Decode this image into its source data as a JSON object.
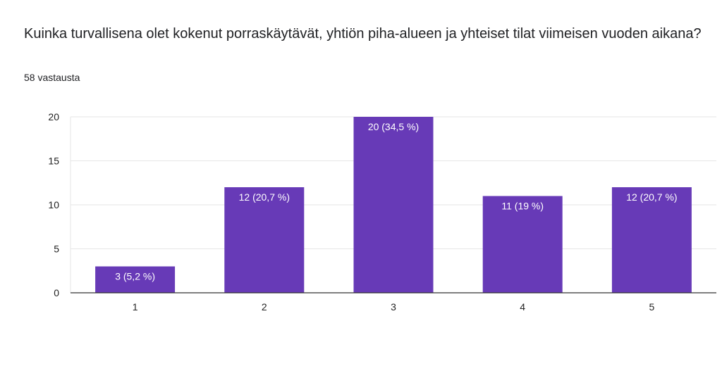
{
  "title": "Kuinka turvallisena olet kokenut porraskäytävät, yhtiön piha-alueen ja yhteiset tilat viimeisen vuoden aikana?",
  "subtitle": "58 vastausta",
  "colors": {
    "bar": "#673ab7",
    "grid": "#e6e6e6",
    "axis": "#333333"
  },
  "chart_data": {
    "type": "bar",
    "categories": [
      "1",
      "2",
      "3",
      "4",
      "5"
    ],
    "values": [
      3,
      12,
      20,
      11,
      12
    ],
    "data_labels": [
      "3 (5,2 %)",
      "12 (20,7 %)",
      "20 (34,5 %)",
      "11 (19 %)",
      "12 (20,7 %)"
    ],
    "yticks": [
      0,
      5,
      10,
      15,
      20
    ],
    "ylim": [
      0,
      20
    ],
    "grid": true,
    "legend": "none"
  }
}
